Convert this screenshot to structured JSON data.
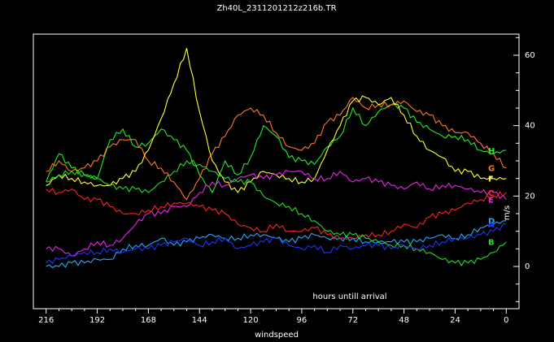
{
  "chart_data": {
    "type": "line",
    "title": "Zh40L_2311201212z216b.TR",
    "xlabel": "windspeed",
    "ylabel": "m/s",
    "annotation": "hours untill arrival",
    "x_reversed": true,
    "xlim": [
      222,
      -6
    ],
    "ylim": [
      -12,
      66
    ],
    "x_ticks": [
      216,
      192,
      168,
      144,
      120,
      96,
      72,
      48,
      24,
      0
    ],
    "y_ticks": [
      0,
      20,
      40,
      60
    ],
    "grid": false,
    "legend": "line-end labels",
    "x": [
      216,
      210,
      204,
      198,
      192,
      186,
      180,
      174,
      168,
      162,
      156,
      150,
      144,
      138,
      132,
      126,
      120,
      114,
      108,
      102,
      96,
      90,
      84,
      78,
      72,
      66,
      60,
      54,
      48,
      42,
      36,
      30,
      24,
      18,
      12,
      6,
      0
    ],
    "series": [
      {
        "name": "H",
        "color": "#22ee22",
        "values": [
          24,
          32,
          28,
          26,
          25,
          36,
          39,
          34,
          35,
          39,
          36,
          33,
          26,
          21,
          30,
          26,
          31,
          40,
          37,
          31,
          30,
          29,
          34,
          37,
          45,
          40,
          44,
          46,
          45,
          41,
          39,
          37,
          37,
          36,
          33,
          32,
          33
        ]
      },
      {
        "name": "G",
        "color": "#ff7722",
        "values": [
          27,
          30,
          27,
          28,
          30,
          34,
          36,
          36,
          30,
          28,
          24,
          19,
          25,
          32,
          37,
          43,
          45,
          43,
          38,
          34,
          33,
          35,
          41,
          43,
          48,
          45,
          46,
          46,
          47,
          44,
          43,
          40,
          38,
          38,
          35,
          32,
          28
        ]
      },
      {
        "name": "F",
        "color": "#ffff33",
        "values": [
          23,
          26,
          25,
          24,
          23,
          23,
          25,
          27,
          33,
          42,
          52,
          62,
          44,
          30,
          24,
          21,
          24,
          27,
          26,
          25,
          24,
          25,
          33,
          40,
          47,
          48,
          46,
          48,
          43,
          37,
          33,
          31,
          27,
          27,
          25,
          25,
          25
        ]
      },
      {
        "name": "E",
        "color": "#ee22ee",
        "values": [
          5,
          5,
          3,
          5,
          7,
          6,
          8,
          12,
          15,
          15,
          17,
          17,
          21,
          24,
          23,
          25,
          26,
          25,
          26,
          27,
          27,
          25,
          25,
          27,
          24,
          25,
          24,
          23,
          22,
          24,
          22,
          23,
          23,
          22,
          21,
          21,
          19
        ]
      },
      {
        "name": "D",
        "color": "#22aaff",
        "values": [
          0,
          0,
          1,
          1,
          2,
          2,
          5,
          6,
          6,
          8,
          6,
          7,
          8,
          9,
          8,
          8,
          9,
          9,
          8,
          7,
          8,
          9,
          8,
          8,
          8,
          7,
          7,
          7,
          7,
          7,
          8,
          9,
          8,
          9,
          11,
          12,
          13
        ]
      },
      {
        "name": "C",
        "color": "#ff2222",
        "values": [
          22,
          21,
          22,
          19,
          19,
          17,
          15,
          15,
          16,
          17,
          18,
          18,
          17,
          16,
          15,
          12,
          11,
          10,
          12,
          10,
          10,
          11,
          9,
          8,
          8,
          9,
          9,
          10,
          12,
          11,
          14,
          15,
          16,
          18,
          19,
          20,
          21
        ]
      },
      {
        "name": "B",
        "color": "#22dd22",
        "values": [
          24,
          26,
          27,
          26,
          25,
          23,
          22,
          22,
          21,
          24,
          27,
          30,
          29,
          27,
          25,
          24,
          24,
          20,
          18,
          17,
          15,
          13,
          10,
          9,
          9,
          8,
          7,
          6,
          6,
          5,
          4,
          2,
          1,
          1,
          2,
          4,
          7
        ]
      },
      {
        "name": "A",
        "color": "#2233ff",
        "values": [
          1,
          2,
          3,
          4,
          4,
          5,
          4,
          5,
          5,
          6,
          7,
          8,
          6,
          7,
          8,
          5,
          6,
          7,
          8,
          6,
          5,
          6,
          4,
          6,
          5,
          6,
          6,
          5,
          6,
          5,
          6,
          7,
          8,
          8,
          9,
          10,
          12
        ]
      }
    ]
  }
}
